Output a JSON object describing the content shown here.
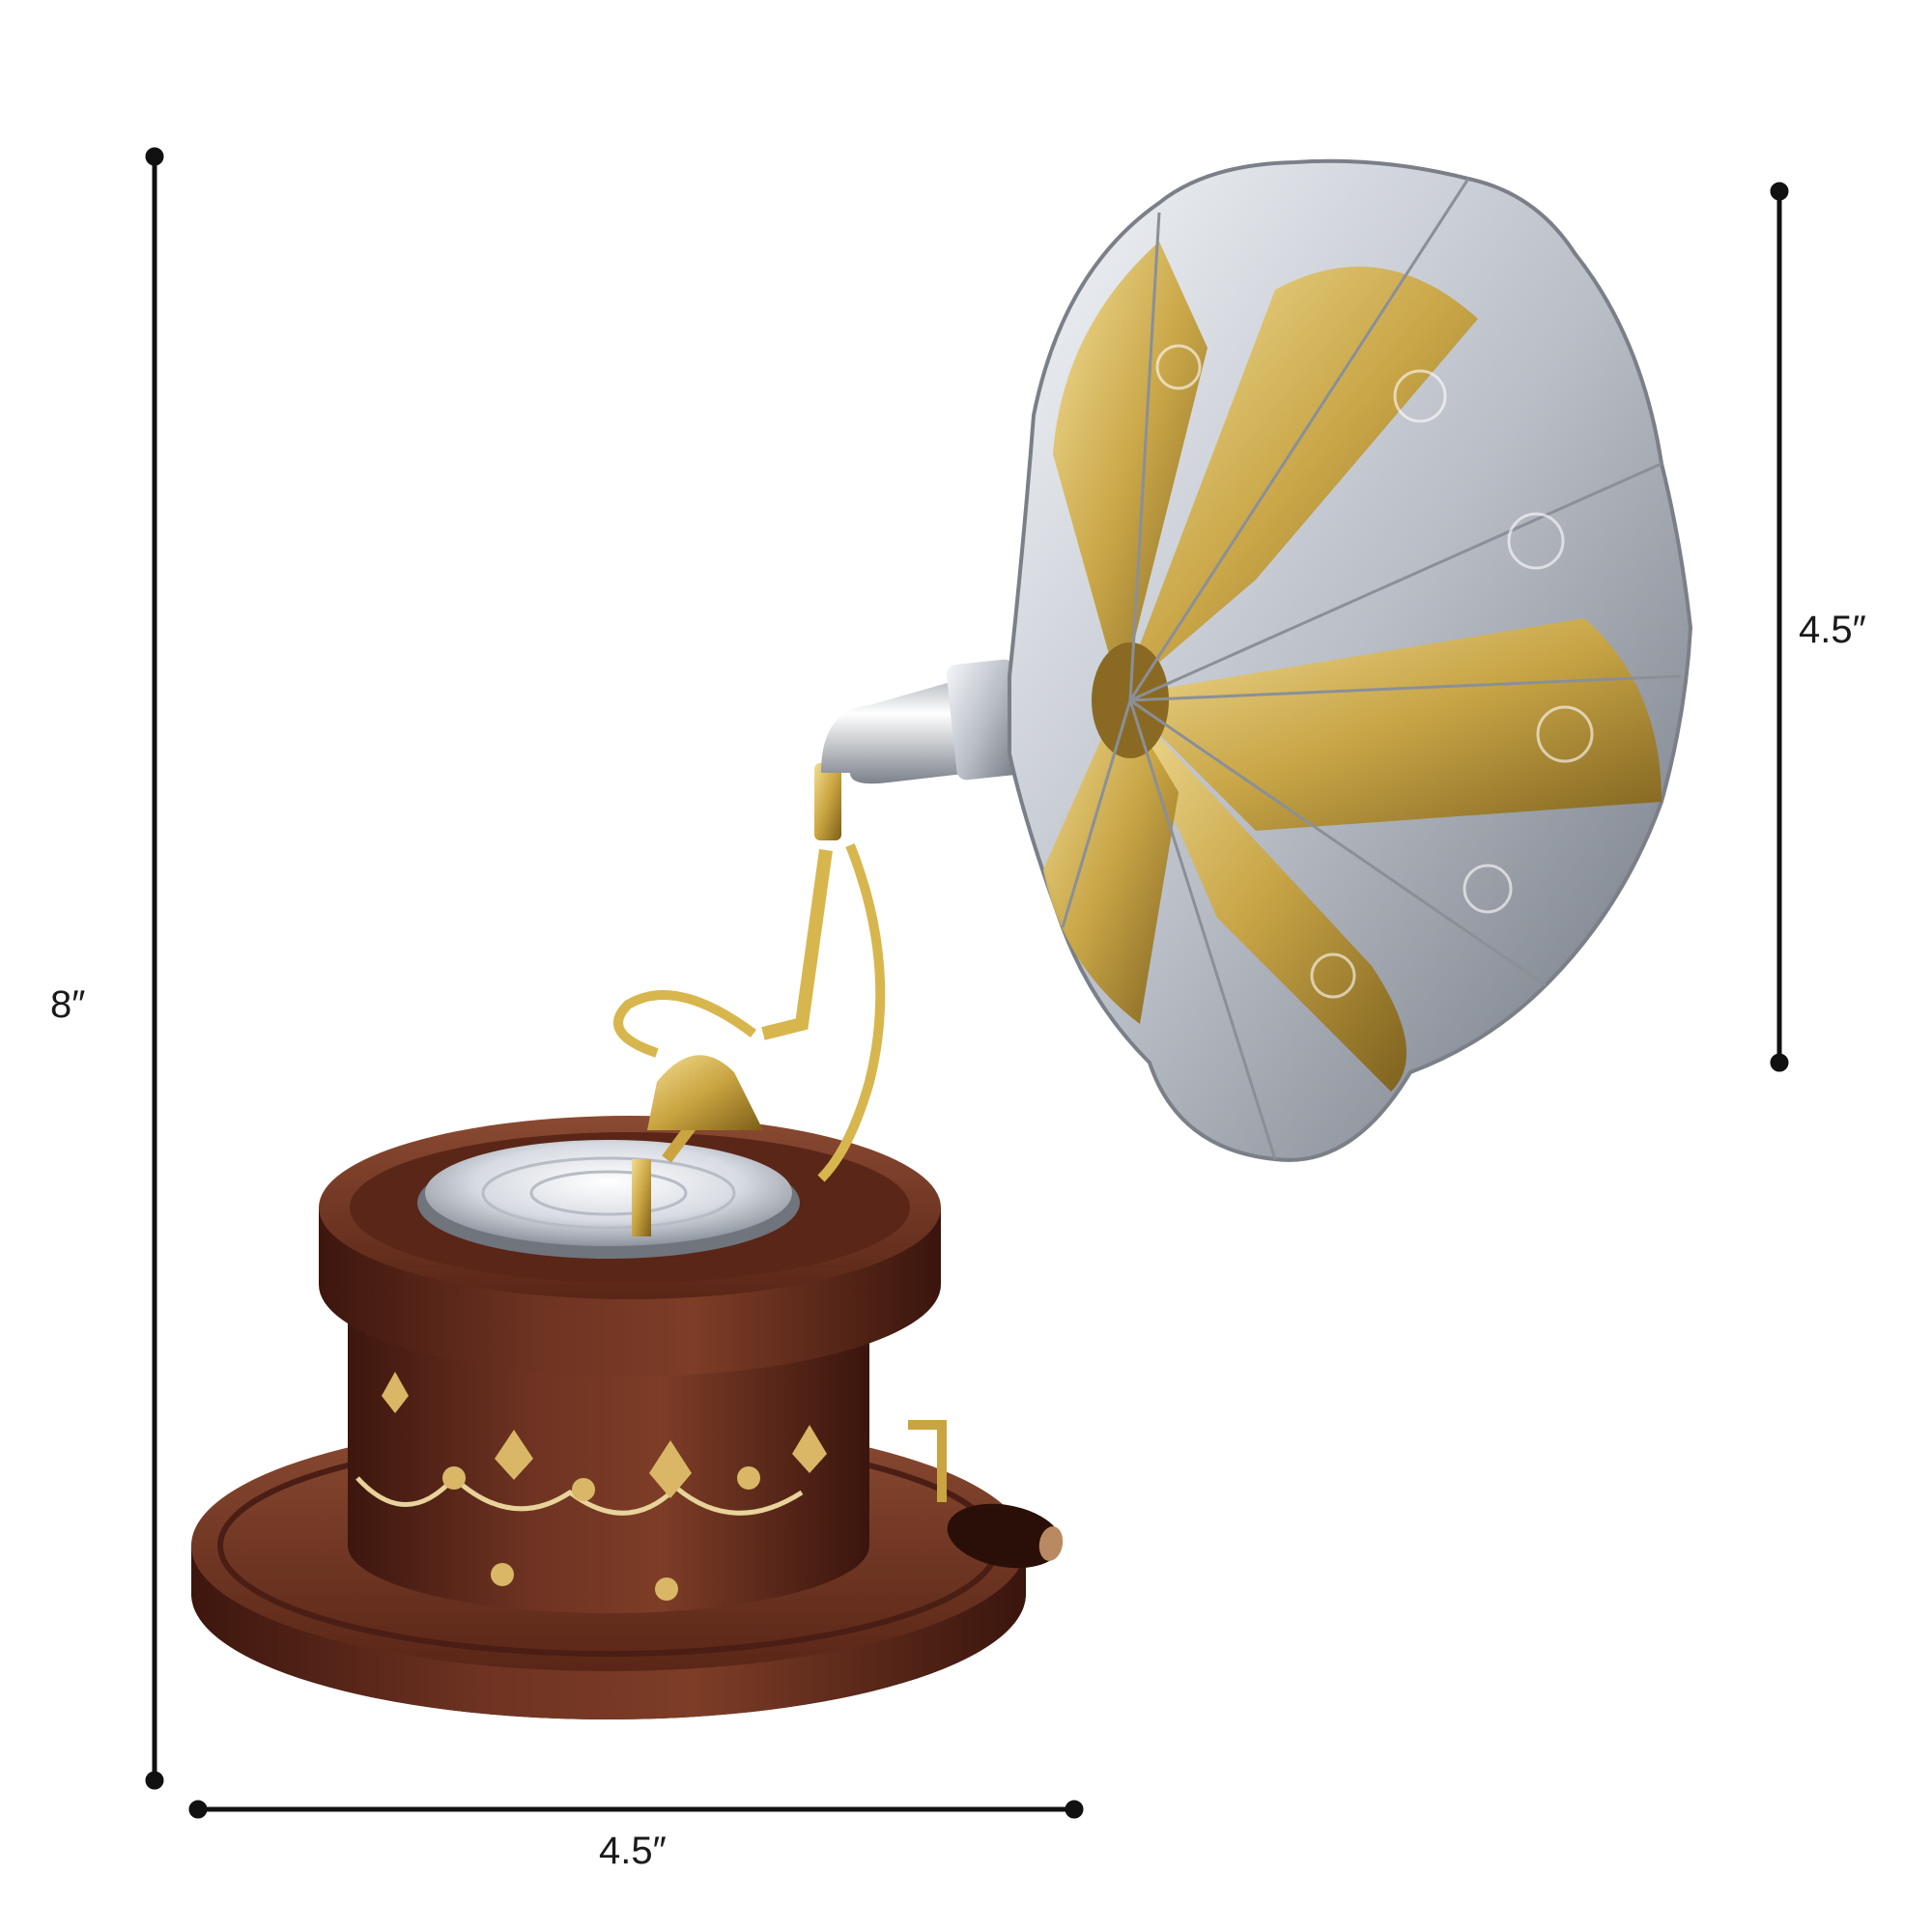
{
  "product": {
    "name": "gramophone"
  },
  "dimensions": {
    "height_label": "8″",
    "horn_label": "4.5″",
    "width_label": "4.5″"
  },
  "colors": {
    "background": "#ffffff",
    "dimension_line": "#111111",
    "wood_dark": "#4a1e14",
    "wood_mid": "#6e3322",
    "wood_light": "#8a4a32",
    "brass": "#c9a440",
    "brass_light": "#f0d98a",
    "silver": "#c9ced6",
    "silver_light": "#f2f4f7"
  }
}
